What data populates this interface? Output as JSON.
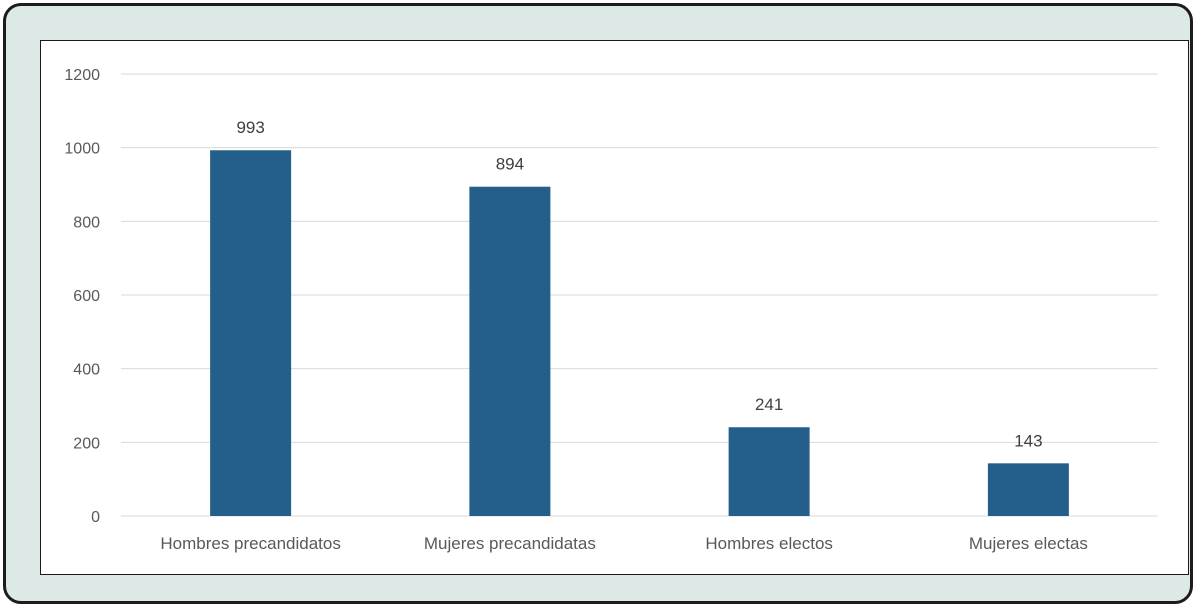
{
  "chart_data": {
    "type": "bar",
    "categories": [
      "Hombres precandidatos",
      "Mujeres precandidatas",
      "Hombres electos",
      "Mujeres electas"
    ],
    "values": [
      993,
      894,
      241,
      143
    ],
    "data_labels": [
      "993",
      "894",
      "241",
      "143"
    ],
    "title": "",
    "xlabel": "",
    "ylabel": "",
    "ylim": [
      0,
      1200
    ],
    "yticks": [
      0,
      200,
      400,
      600,
      800,
      1000,
      1200
    ],
    "ytick_labels": [
      "0",
      "200",
      "400",
      "600",
      "800",
      "1000",
      "1200"
    ],
    "grid": true,
    "legend": "none",
    "bar_color": "#245f8c",
    "gridline_color": "#d9d9d9",
    "frame_background": "#dce9e7",
    "frame_border_color": "#1c1c1c"
  }
}
